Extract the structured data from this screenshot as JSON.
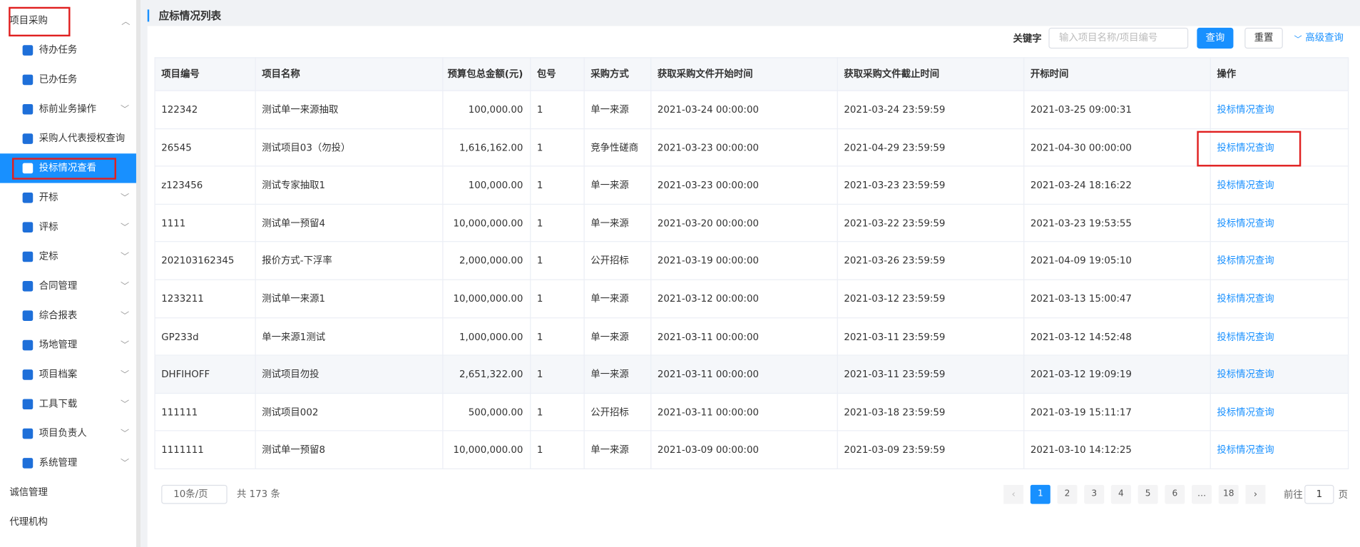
{
  "sidebar": {
    "group": "项目采购",
    "active": 4,
    "items": [
      {
        "label": "待办任务",
        "submenu": false
      },
      {
        "label": "已办任务",
        "submenu": false
      },
      {
        "label": "标前业务操作",
        "submenu": true
      },
      {
        "label": "采购人代表授权查询",
        "submenu": false
      },
      {
        "label": "投标情况查看",
        "submenu": false
      },
      {
        "label": "开标",
        "submenu": true
      },
      {
        "label": "评标",
        "submenu": true
      },
      {
        "label": "定标",
        "submenu": true
      },
      {
        "label": "合同管理",
        "submenu": true
      },
      {
        "label": "综合报表",
        "submenu": true
      },
      {
        "label": "场地管理",
        "submenu": true
      },
      {
        "label": "项目档案",
        "submenu": true
      },
      {
        "label": "工具下载",
        "submenu": true
      },
      {
        "label": "项目负责人",
        "submenu": true
      },
      {
        "label": "系统管理",
        "submenu": true
      }
    ],
    "bottom": [
      "诚信管理",
      "代理机构"
    ]
  },
  "header": {
    "title": "应标情况列表"
  },
  "search": {
    "label": "关键字",
    "placeholder": "输入项目名称/项目编号",
    "query": "查询",
    "reset": "重置",
    "advanced": "高级查询"
  },
  "table": {
    "columns": [
      "项目编号",
      "项目名称",
      "预算包总金额(元)",
      "包号",
      "采购方式",
      "获取采购文件开始时间",
      "获取采购文件截止时间",
      "开标时间",
      "操作"
    ],
    "rows": [
      [
        "122342",
        "测试单一来源抽取",
        "100,000.00",
        "1",
        "单一来源",
        "2021-03-24 00:00:00",
        "2021-03-24 23:59:59",
        "2021-03-25 09:00:31",
        "投标情况查询"
      ],
      [
        "26545",
        "测试项目03（勿投）",
        "1,616,162.00",
        "1",
        "竞争性磋商",
        "2021-03-23 00:00:00",
        "2021-04-29 23:59:59",
        "2021-04-30 00:00:00",
        "投标情况查询"
      ],
      [
        "z123456",
        "测试专家抽取1",
        "100,000.00",
        "1",
        "单一来源",
        "2021-03-23 00:00:00",
        "2021-03-23 23:59:59",
        "2021-03-24 18:16:22",
        "投标情况查询"
      ],
      [
        "1111",
        "测试单一预留4",
        "10,000,000.00",
        "1",
        "单一来源",
        "2021-03-20 00:00:00",
        "2021-03-22 23:59:59",
        "2021-03-23 19:53:55",
        "投标情况查询"
      ],
      [
        "202103162345",
        "报价方式-下浮率",
        "2,000,000.00",
        "1",
        "公开招标",
        "2021-03-19 00:00:00",
        "2021-03-26 23:59:59",
        "2021-04-09 19:05:10",
        "投标情况查询"
      ],
      [
        "1233211",
        "测试单一来源1",
        "10,000,000.00",
        "1",
        "单一来源",
        "2021-03-12 00:00:00",
        "2021-03-12 23:59:59",
        "2021-03-13 15:00:47",
        "投标情况查询"
      ],
      [
        "GP233d",
        "单一来源1测试",
        "1,000,000.00",
        "1",
        "单一来源",
        "2021-03-11 00:00:00",
        "2021-03-11 23:59:59",
        "2021-03-12 14:52:48",
        "投标情况查询"
      ],
      [
        "DHFIHOFF",
        "测试项目勿投",
        "2,651,322.00",
        "1",
        "单一来源",
        "2021-03-11 00:00:00",
        "2021-03-11 23:59:59",
        "2021-03-12 19:09:19",
        "投标情况查询"
      ],
      [
        "111111",
        "测试项目002",
        "500,000.00",
        "1",
        "公开招标",
        "2021-03-11 00:00:00",
        "2021-03-18 23:59:59",
        "2021-03-19 15:11:17",
        "投标情况查询"
      ],
      [
        "1111111",
        "测试单一预留8",
        "10,000,000.00",
        "1",
        "单一来源",
        "2021-03-09 00:00:00",
        "2021-03-09 23:59:59",
        "2021-03-10 14:12:25",
        "投标情况查询"
      ]
    ]
  },
  "pagination": {
    "page_size": "10条/页",
    "total": "共 173 条",
    "pages": [
      "1",
      "2",
      "3",
      "4",
      "5",
      "6",
      "…",
      "18"
    ],
    "current": 0,
    "goto": "前往",
    "goto_value": "1",
    "page_unit": "页"
  }
}
